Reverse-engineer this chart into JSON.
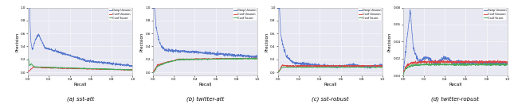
{
  "subplots": [
    {
      "title": "(a) sst-att",
      "xlabel": "Recall",
      "ylabel": "Precision",
      "xlim": [
        0.0,
        1.0
      ],
      "ylim": [
        -0.05,
        1.0
      ],
      "xticks": [
        0.0,
        0.2,
        0.4,
        0.6,
        0.8,
        1.0
      ],
      "yticks": [
        0.0,
        0.2,
        0.4,
        0.6,
        0.8,
        1.0
      ]
    },
    {
      "title": "(b) twitter-att",
      "xlabel": "Recall",
      "ylabel": "Precision",
      "xlim": [
        0.0,
        1.0
      ],
      "ylim": [
        -0.05,
        1.0
      ],
      "xticks": [
        0.0,
        0.2,
        0.4,
        0.6,
        0.8,
        1.0
      ],
      "yticks": [
        0.0,
        0.2,
        0.4,
        0.6,
        0.8,
        1.0
      ]
    },
    {
      "title": "(c) sst-robust",
      "xlabel": "Recall",
      "ylabel": "Precision",
      "xlim": [
        0.0,
        1.0
      ],
      "ylim": [
        -0.05,
        1.0
      ],
      "xticks": [
        0.0,
        0.2,
        0.4,
        0.6,
        0.8,
        1.0
      ],
      "yticks": [
        0.0,
        0.2,
        0.4,
        0.6,
        0.8,
        1.0
      ]
    },
    {
      "title": "(d) twitter-robust",
      "xlabel": "Recall",
      "ylabel": "Precision",
      "xlim": [
        0.0,
        1.0
      ],
      "ylim": [
        0.0,
        0.08
      ],
      "xticks": [
        0.0,
        0.2,
        0.4,
        0.6,
        0.8,
        1.0
      ],
      "yticks": [
        0.0,
        0.02,
        0.04,
        0.06,
        0.08
      ]
    }
  ],
  "legend_labels": [
    "Deep Unseen",
    "Conf Unseen",
    "Conf Score"
  ],
  "colors": {
    "blue": "#5577CC",
    "red": "#DD4444",
    "green": "#44AA55"
  },
  "background_color": "#E8E8F2",
  "fig_background": "#FFFFFF",
  "grid_color": "#FFFFFF",
  "spine_color": "#AAAAAA"
}
